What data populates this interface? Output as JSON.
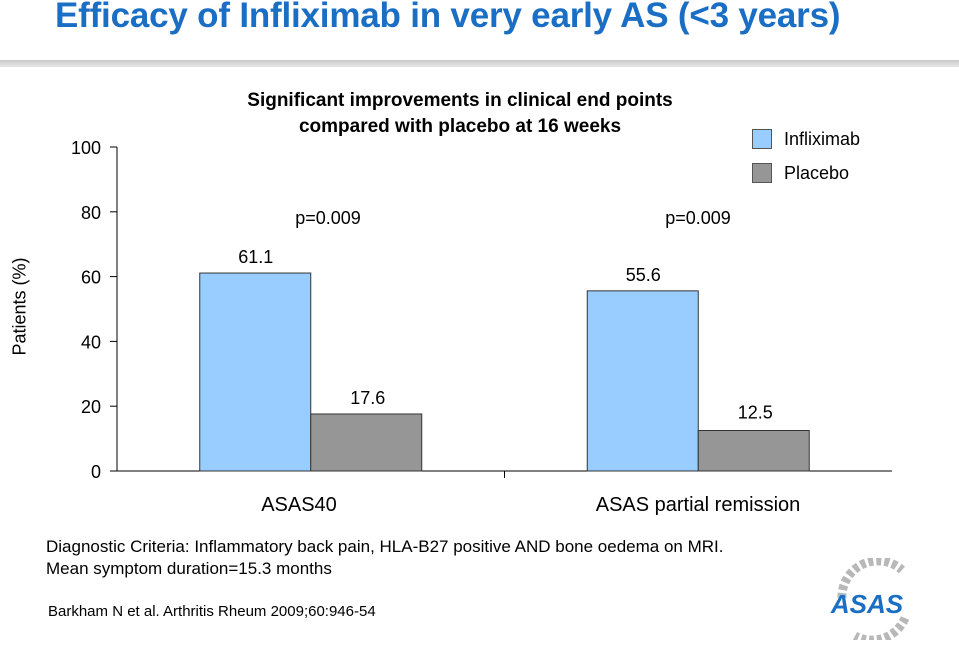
{
  "page": {
    "title": "Efficacy of Infliximab in very early AS (<3 years)",
    "caption_line1": "Diagnostic Criteria: Inflammatory back pain, HLA-B27 positive AND bone oedema on MRI.",
    "caption_line2": "Mean symptom duration=15.3 months",
    "citation": "Barkham N et al. Arthritis Rheum 2009;60:946-54",
    "logo_text": "ASAS"
  },
  "chart_data": {
    "type": "bar",
    "title": "Significant improvements in clinical end points",
    "subtitle": "compared with placebo at 16 weeks",
    "ylabel": "Patients (%)",
    "xlabel": "",
    "categories": [
      "ASAS40",
      "ASAS partial remission"
    ],
    "series": [
      {
        "name": "Infliximab",
        "values": [
          61.1,
          55.6
        ],
        "labels": [
          "61.1",
          "55.6"
        ],
        "color": "#99ccff"
      },
      {
        "name": "Placebo",
        "values": [
          17.6,
          12.5
        ],
        "labels": [
          "17.6",
          "12.5"
        ],
        "color": "#969696"
      }
    ],
    "annotations": [
      "p=0.009",
      "p=0.009"
    ],
    "ylim": [
      0,
      100
    ],
    "yticks": [
      0,
      20,
      40,
      60,
      80,
      100
    ],
    "ytick_labels": [
      "0",
      "20",
      "40",
      "60",
      "80",
      "100"
    ],
    "grid": false,
    "legend_position": "top-right"
  }
}
